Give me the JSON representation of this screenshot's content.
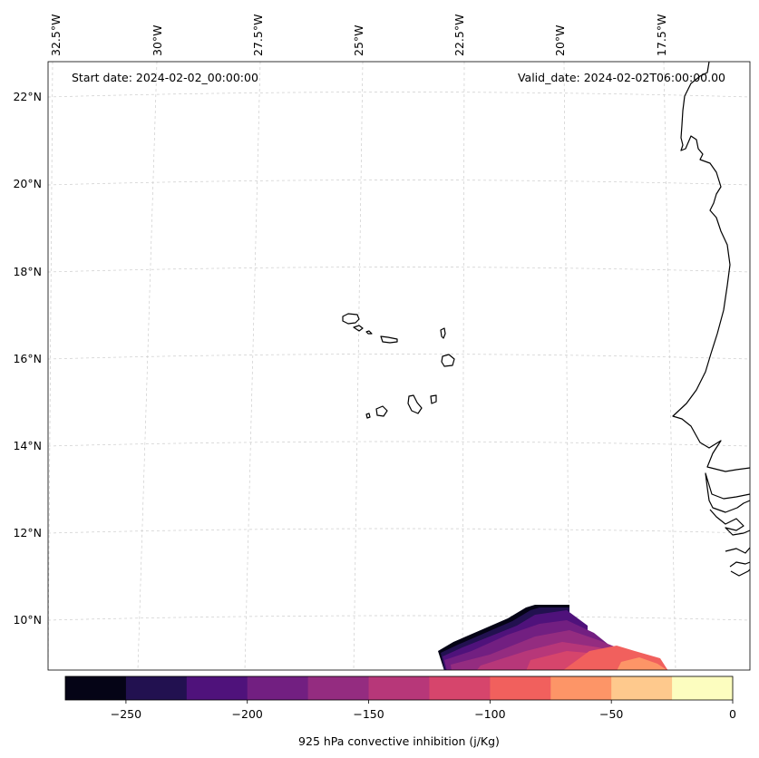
{
  "map": {
    "start_label": "Start date: 2024-02-02_00:00:00",
    "valid_label": "Valid_date: 2024-02-02T06:00:00.00",
    "lon_labels": [
      "32.5°W",
      "30°W",
      "27.5°W",
      "25°W",
      "22.5°W",
      "20°W",
      "17.5°W"
    ],
    "lat_labels": [
      "22°N",
      "20°N",
      "18°N",
      "16°N",
      "14°N",
      "12°N",
      "10°N"
    ],
    "coastline_color": "#000000",
    "gridline_color": "#cccccc"
  },
  "colorbar": {
    "label": "925 hPa convective inhibition (j/Kg)",
    "ticks": [
      "−250",
      "−200",
      "−150",
      "−100",
      "−50",
      "0"
    ],
    "levels": [
      -275,
      -250,
      -225,
      -200,
      -175,
      -150,
      -125,
      -100,
      -75,
      -50,
      -25,
      0
    ],
    "colors": [
      "#050416",
      "#221150",
      "#4f127b",
      "#721f81",
      "#942c80",
      "#b73779",
      "#d6456c",
      "#f1605d",
      "#fd9567",
      "#fec98d",
      "#fcfdbf"
    ]
  }
}
